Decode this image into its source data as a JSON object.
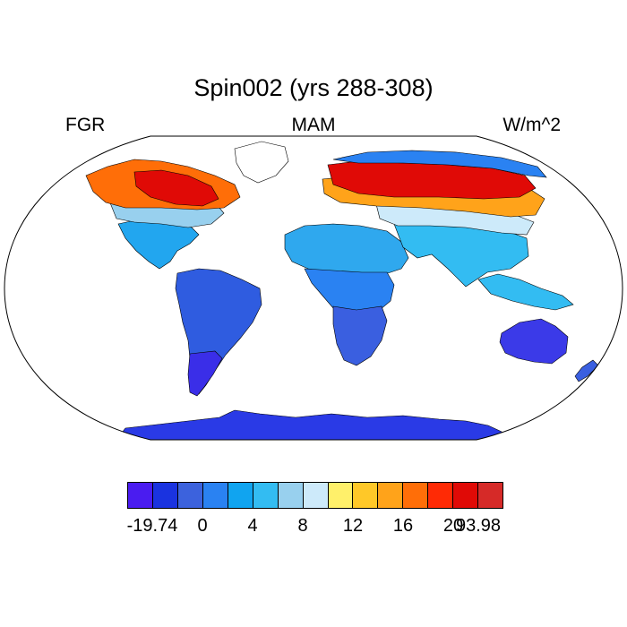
{
  "title": "Spin002 (yrs 288-308)",
  "left_label": "FGR",
  "center_label": "MAM",
  "right_label": "W/m^2",
  "colors": {
    "ocean": "#ffffff",
    "coast": "#000000"
  },
  "colorbar": {
    "colors": [
      "#4a1cf0",
      "#1a33e0",
      "#3c62dd",
      "#2a82f2",
      "#10a4f0",
      "#33bcf2",
      "#98d0ee",
      "#cdeafa",
      "#fff06a",
      "#ffc828",
      "#ffa31a",
      "#ff6e08",
      "#ff2a05",
      "#e00a06",
      "#d62a28"
    ],
    "labels": [
      {
        "text": "-19.74",
        "boundary": 1
      },
      {
        "text": "0",
        "boundary": 3
      },
      {
        "text": "4",
        "boundary": 5
      },
      {
        "text": "8",
        "boundary": 7
      },
      {
        "text": "12",
        "boundary": 9
      },
      {
        "text": "16",
        "boundary": 11
      },
      {
        "text": "20",
        "boundary": 13
      },
      {
        "text": "93.98",
        "boundary": 14
      }
    ]
  },
  "regions": [
    {
      "name": "antarctica",
      "color": "#2a3ae6"
    },
    {
      "name": "south-america",
      "color": "#2f5ce0"
    },
    {
      "name": "south-america-south",
      "color": "#3a2ee8"
    },
    {
      "name": "africa-north",
      "color": "#2fa8ee"
    },
    {
      "name": "africa-center",
      "color": "#2a82f2"
    },
    {
      "name": "africa-south",
      "color": "#3a5fe0"
    },
    {
      "name": "australia",
      "color": "#3b3ae8"
    },
    {
      "name": "north-america-south",
      "color": "#22a6ef"
    },
    {
      "name": "north-america-mid",
      "color": "#98d0ee"
    },
    {
      "name": "north-america-north",
      "color": "#ff6e08"
    },
    {
      "name": "canada-core",
      "color": "#e00a06"
    },
    {
      "name": "greenland",
      "color": "#ffffff"
    },
    {
      "name": "asia-south",
      "color": "#33bcf2"
    },
    {
      "name": "asia-mid",
      "color": "#cdeafa"
    },
    {
      "name": "eurasia-band",
      "color": "#ffa31a"
    },
    {
      "name": "eurasia-north",
      "color": "#e00a06"
    },
    {
      "name": "arctic-coast",
      "color": "#2a82f2"
    },
    {
      "name": "indonesia",
      "color": "#33bcf2"
    },
    {
      "name": "new-zealand",
      "color": "#3a5fe0"
    }
  ]
}
